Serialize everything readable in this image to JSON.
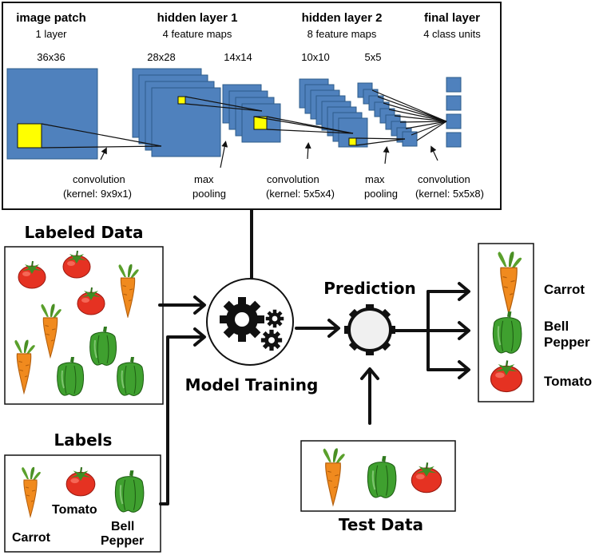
{
  "cnn": {
    "stages": [
      {
        "title": "image patch",
        "subtitle": "1 layer"
      },
      {
        "title": "hidden layer 1",
        "subtitle": "4 feature maps"
      },
      {
        "title": "hidden layer 2",
        "subtitle": "8 feature maps"
      },
      {
        "title": "final layer",
        "subtitle": "4 class units"
      }
    ],
    "sizes": [
      "36x36",
      "28x28",
      "14x14",
      "10x10",
      "5x5"
    ],
    "operations": [
      {
        "line1": "convolution",
        "line2": "(kernel: 9x9x1)"
      },
      {
        "line1": "max",
        "line2": "pooling"
      },
      {
        "line1": "convolution",
        "line2": "(kernel: 5x5x4)"
      },
      {
        "line1": "max",
        "line2": "pooling"
      },
      {
        "line1": "convolution",
        "line2": "(kernel: 5x5x8)"
      }
    ]
  },
  "labeled_data": {
    "title": "Labeled Data"
  },
  "labels": {
    "title": "Labels",
    "items": [
      "Carrot",
      "Tomato",
      "Bell",
      "Pepper"
    ]
  },
  "model_training": {
    "label": "Model Training"
  },
  "prediction": {
    "label": "Prediction"
  },
  "test_data": {
    "title": "Test Data"
  },
  "outputs": [
    "Carrot",
    "Bell",
    "Pepper",
    "Tomato"
  ],
  "colors": {
    "feature_map": "#4f81bd",
    "feature_map_edge": "#2e5c8a",
    "kernel": "#ffff00",
    "tomato": "#e53222",
    "carrot": "#f08a1e",
    "pepper": "#3fa02f",
    "leaf": "#5aa02c"
  },
  "icons": [
    "gears-icon",
    "gear-icon",
    "tomato-icon",
    "carrot-icon",
    "bell-pepper-icon",
    "arrow-icon"
  ]
}
